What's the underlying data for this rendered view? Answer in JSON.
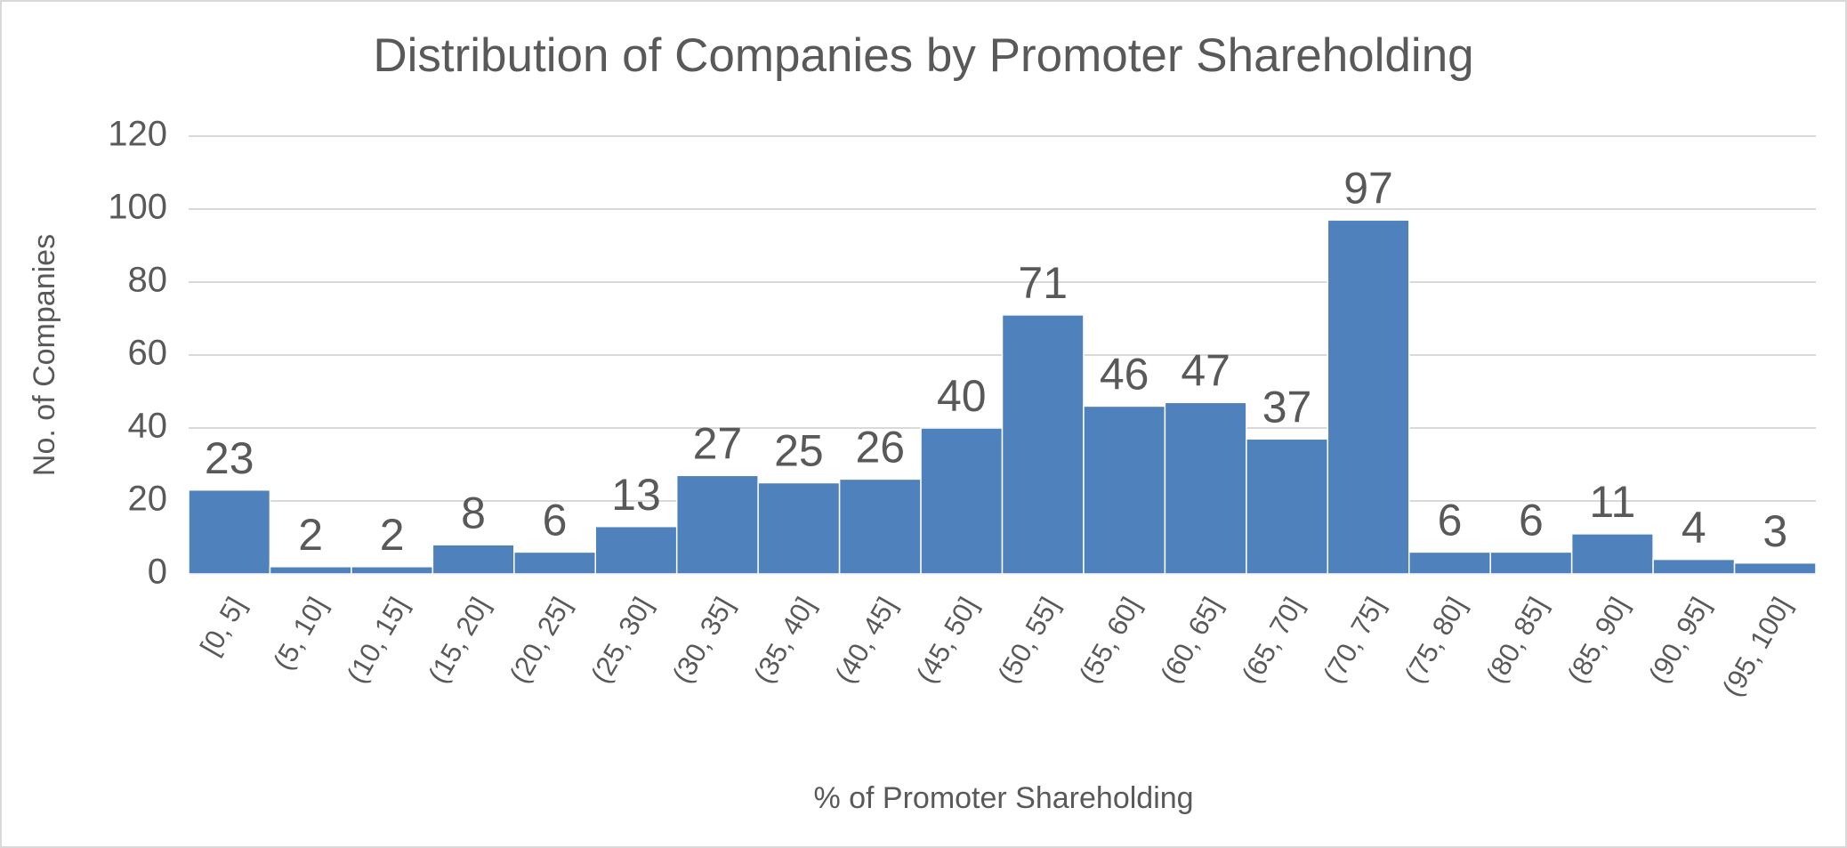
{
  "chart_data": {
    "type": "bar",
    "title": "Distribution of Companies by Promoter Shareholding",
    "x_label": "% of Promoter Shareholding",
    "y_label": "No. of Companies",
    "categories": [
      "[0, 5]",
      "(5, 10]",
      "(10, 15]",
      "(15, 20]",
      "(20, 25]",
      "(25, 30]",
      "(30, 35]",
      "(35, 40]",
      "(40, 45]",
      "(45, 50]",
      "(50, 55]",
      "(55, 60]",
      "(60, 65]",
      "(65, 70]",
      "(70, 75]",
      "(75, 80]",
      "(80, 85]",
      "(85, 90]",
      "(90, 95]",
      "(95, 100]"
    ],
    "values": [
      23,
      2,
      2,
      8,
      6,
      13,
      27,
      25,
      26,
      40,
      71,
      46,
      47,
      37,
      97,
      6,
      6,
      11,
      4,
      3
    ],
    "color": "#4f81bd",
    "ylim": [
      0,
      120
    ],
    "yticks": [
      0,
      20,
      40,
      60,
      80,
      100,
      120
    ],
    "grid": true,
    "data_labels": true
  }
}
